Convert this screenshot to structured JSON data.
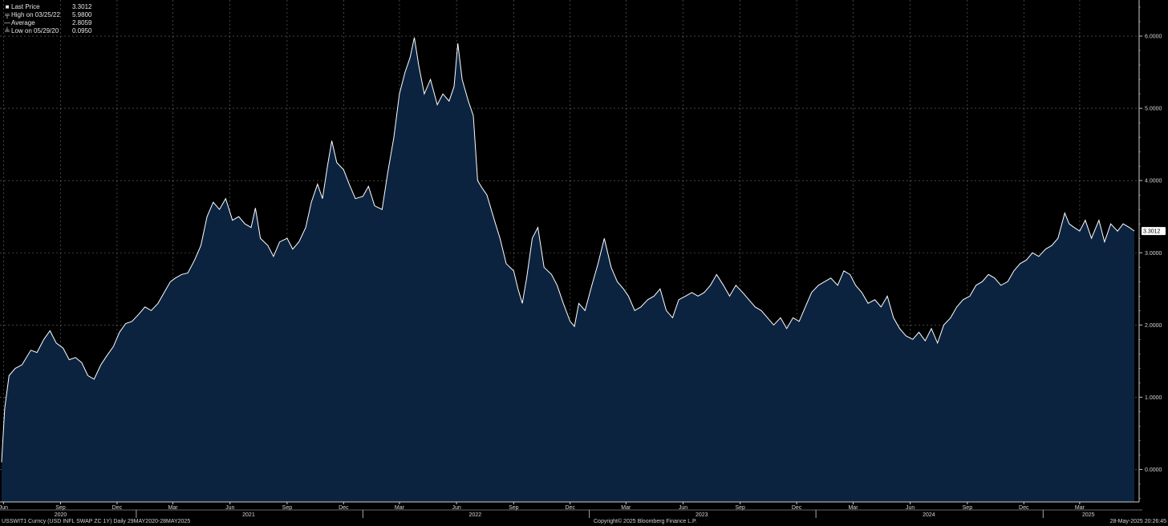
{
  "legend": {
    "items": [
      {
        "key": "swatch",
        "label": "Last Price",
        "value": "3.3012"
      },
      {
        "key": "high",
        "label": "High on 03/25/22",
        "value": "5.9800"
      },
      {
        "key": "avg",
        "label": "Average",
        "value": "2.8059"
      },
      {
        "key": "low",
        "label": "Low on 05/29/20",
        "value": "0.0950"
      }
    ]
  },
  "footer": {
    "left": "USSWIT1 Curncy (USD INFL SWAP ZC 1Y)  Daily 29MAY2020-28MAY2025",
    "center": "Copyright© 2025 Bloomberg Finance L.P.",
    "right": "28-May-2025 20:26:45"
  },
  "colors": {
    "background": "#000000",
    "area_fill": "#0c2340",
    "line": "#ffffff",
    "grid": "#6e6e6e"
  },
  "chart_data": {
    "type": "area",
    "ylim": [
      -0.45,
      6.5
    ],
    "y_ticks": [
      0,
      1,
      2,
      3,
      4,
      5,
      6
    ],
    "y_tick_labels": [
      "0.0000",
      "1.0000",
      "2.0000",
      "3.0000",
      "4.0000",
      "5.0000",
      "6.0000"
    ],
    "x_range": [
      "2020-05-29",
      "2025-05-28"
    ],
    "month_ticks": [
      {
        "date": "2020-06-01",
        "label": "Jun"
      },
      {
        "date": "2020-09-01",
        "label": "Sep"
      },
      {
        "date": "2020-12-01",
        "label": "Dec"
      },
      {
        "date": "2021-03-01",
        "label": "Mar"
      },
      {
        "date": "2021-06-01",
        "label": "Jun"
      },
      {
        "date": "2021-09-01",
        "label": "Sep"
      },
      {
        "date": "2021-12-01",
        "label": "Dec"
      },
      {
        "date": "2022-03-01",
        "label": "Mar"
      },
      {
        "date": "2022-06-01",
        "label": "Jun"
      },
      {
        "date": "2022-09-01",
        "label": "Sep"
      },
      {
        "date": "2022-12-01",
        "label": "Dec"
      },
      {
        "date": "2023-03-01",
        "label": "Mar"
      },
      {
        "date": "2023-06-01",
        "label": "Jun"
      },
      {
        "date": "2023-09-01",
        "label": "Sep"
      },
      {
        "date": "2023-12-01",
        "label": "Dec"
      },
      {
        "date": "2024-03-01",
        "label": "Mar"
      },
      {
        "date": "2024-06-01",
        "label": "Jun"
      },
      {
        "date": "2024-09-01",
        "label": "Sep"
      },
      {
        "date": "2024-12-01",
        "label": "Dec"
      },
      {
        "date": "2025-03-01",
        "label": "Mar"
      }
    ],
    "year_labels": [
      {
        "date": "2020-09-01",
        "label": "2020"
      },
      {
        "date": "2021-07-01",
        "label": "2021"
      },
      {
        "date": "2022-07-01",
        "label": "2022"
      },
      {
        "date": "2023-07-01",
        "label": "2023"
      },
      {
        "date": "2024-07-01",
        "label": "2024"
      },
      {
        "date": "2025-03-15",
        "label": "2025"
      }
    ],
    "year_boundaries": [
      "2021-01-01",
      "2022-01-01",
      "2023-01-01",
      "2024-01-01",
      "2025-01-01"
    ],
    "last_price_label": "3.3012",
    "last_price_value": 3.3012,
    "grid": true,
    "series": [
      {
        "points": [
          [
            "2020-05-29",
            0.1
          ],
          [
            "2020-06-03",
            0.85
          ],
          [
            "2020-06-10",
            1.3
          ],
          [
            "2020-06-20",
            1.4
          ],
          [
            "2020-07-01",
            1.45
          ],
          [
            "2020-07-15",
            1.65
          ],
          [
            "2020-07-25",
            1.62
          ],
          [
            "2020-08-05",
            1.8
          ],
          [
            "2020-08-15",
            1.92
          ],
          [
            "2020-08-25",
            1.75
          ],
          [
            "2020-09-05",
            1.68
          ],
          [
            "2020-09-15",
            1.52
          ],
          [
            "2020-09-25",
            1.55
          ],
          [
            "2020-10-05",
            1.48
          ],
          [
            "2020-10-15",
            1.3
          ],
          [
            "2020-10-25",
            1.25
          ],
          [
            "2020-11-05",
            1.45
          ],
          [
            "2020-11-15",
            1.58
          ],
          [
            "2020-11-25",
            1.7
          ],
          [
            "2020-12-05",
            1.9
          ],
          [
            "2020-12-15",
            2.02
          ],
          [
            "2020-12-25",
            2.05
          ],
          [
            "2021-01-05",
            2.15
          ],
          [
            "2021-01-15",
            2.25
          ],
          [
            "2021-01-25",
            2.2
          ],
          [
            "2021-02-05",
            2.3
          ],
          [
            "2021-02-15",
            2.45
          ],
          [
            "2021-02-25",
            2.6
          ],
          [
            "2021-03-05",
            2.65
          ],
          [
            "2021-03-15",
            2.7
          ],
          [
            "2021-03-25",
            2.72
          ],
          [
            "2021-04-05",
            2.9
          ],
          [
            "2021-04-15",
            3.1
          ],
          [
            "2021-04-25",
            3.5
          ],
          [
            "2021-05-05",
            3.7
          ],
          [
            "2021-05-15",
            3.6
          ],
          [
            "2021-05-25",
            3.75
          ],
          [
            "2021-06-05",
            3.45
          ],
          [
            "2021-06-15",
            3.5
          ],
          [
            "2021-06-25",
            3.4
          ],
          [
            "2021-07-05",
            3.35
          ],
          [
            "2021-07-12",
            3.62
          ],
          [
            "2021-07-20",
            3.2
          ],
          [
            "2021-08-01",
            3.1
          ],
          [
            "2021-08-10",
            2.95
          ],
          [
            "2021-08-20",
            3.15
          ],
          [
            "2021-09-01",
            3.2
          ],
          [
            "2021-09-10",
            3.05
          ],
          [
            "2021-09-20",
            3.15
          ],
          [
            "2021-10-01",
            3.35
          ],
          [
            "2021-10-10",
            3.7
          ],
          [
            "2021-10-20",
            3.95
          ],
          [
            "2021-10-28",
            3.75
          ],
          [
            "2021-11-05",
            4.2
          ],
          [
            "2021-11-12",
            4.55
          ],
          [
            "2021-11-20",
            4.25
          ],
          [
            "2021-12-01",
            4.15
          ],
          [
            "2021-12-10",
            3.95
          ],
          [
            "2021-12-20",
            3.75
          ],
          [
            "2022-01-01",
            3.78
          ],
          [
            "2022-01-10",
            3.92
          ],
          [
            "2022-01-20",
            3.65
          ],
          [
            "2022-02-01",
            3.6
          ],
          [
            "2022-02-10",
            4.1
          ],
          [
            "2022-02-20",
            4.6
          ],
          [
            "2022-03-01",
            5.2
          ],
          [
            "2022-03-10",
            5.5
          ],
          [
            "2022-03-18",
            5.7
          ],
          [
            "2022-03-25",
            5.98
          ],
          [
            "2022-04-01",
            5.6
          ],
          [
            "2022-04-10",
            5.2
          ],
          [
            "2022-04-20",
            5.4
          ],
          [
            "2022-05-01",
            5.05
          ],
          [
            "2022-05-10",
            5.2
          ],
          [
            "2022-05-20",
            5.1
          ],
          [
            "2022-05-28",
            5.3
          ],
          [
            "2022-06-03",
            5.9
          ],
          [
            "2022-06-10",
            5.4
          ],
          [
            "2022-06-20",
            5.1
          ],
          [
            "2022-06-28",
            4.9
          ],
          [
            "2022-07-05",
            4.0
          ],
          [
            "2022-07-12",
            3.9
          ],
          [
            "2022-07-20",
            3.8
          ],
          [
            "2022-08-01",
            3.45
          ],
          [
            "2022-08-10",
            3.2
          ],
          [
            "2022-08-20",
            2.85
          ],
          [
            "2022-09-01",
            2.75
          ],
          [
            "2022-09-08",
            2.5
          ],
          [
            "2022-09-15",
            2.3
          ],
          [
            "2022-09-22",
            2.65
          ],
          [
            "2022-10-01",
            3.2
          ],
          [
            "2022-10-10",
            3.35
          ],
          [
            "2022-10-20",
            2.8
          ],
          [
            "2022-11-01",
            2.7
          ],
          [
            "2022-11-10",
            2.55
          ],
          [
            "2022-11-20",
            2.3
          ],
          [
            "2022-12-01",
            2.05
          ],
          [
            "2022-12-08",
            1.98
          ],
          [
            "2022-12-15",
            2.3
          ],
          [
            "2022-12-25",
            2.2
          ],
          [
            "2023-01-05",
            2.55
          ],
          [
            "2023-01-15",
            2.85
          ],
          [
            "2023-01-25",
            3.2
          ],
          [
            "2023-02-05",
            2.8
          ],
          [
            "2023-02-15",
            2.6
          ],
          [
            "2023-02-25",
            2.5
          ],
          [
            "2023-03-05",
            2.4
          ],
          [
            "2023-03-15",
            2.2
          ],
          [
            "2023-03-25",
            2.25
          ],
          [
            "2023-04-05",
            2.35
          ],
          [
            "2023-04-15",
            2.4
          ],
          [
            "2023-04-25",
            2.5
          ],
          [
            "2023-05-05",
            2.2
          ],
          [
            "2023-05-15",
            2.1
          ],
          [
            "2023-05-25",
            2.35
          ],
          [
            "2023-06-05",
            2.4
          ],
          [
            "2023-06-15",
            2.45
          ],
          [
            "2023-06-25",
            2.4
          ],
          [
            "2023-07-05",
            2.45
          ],
          [
            "2023-07-15",
            2.55
          ],
          [
            "2023-07-25",
            2.7
          ],
          [
            "2023-08-05",
            2.55
          ],
          [
            "2023-08-15",
            2.4
          ],
          [
            "2023-08-25",
            2.55
          ],
          [
            "2023-09-05",
            2.45
          ],
          [
            "2023-09-15",
            2.35
          ],
          [
            "2023-09-25",
            2.25
          ],
          [
            "2023-10-05",
            2.2
          ],
          [
            "2023-10-15",
            2.1
          ],
          [
            "2023-10-25",
            2.0
          ],
          [
            "2023-11-05",
            2.1
          ],
          [
            "2023-11-15",
            1.95
          ],
          [
            "2023-11-25",
            2.1
          ],
          [
            "2023-12-05",
            2.05
          ],
          [
            "2023-12-15",
            2.25
          ],
          [
            "2023-12-25",
            2.45
          ],
          [
            "2024-01-05",
            2.55
          ],
          [
            "2024-01-15",
            2.6
          ],
          [
            "2024-01-25",
            2.65
          ],
          [
            "2024-02-05",
            2.55
          ],
          [
            "2024-02-15",
            2.75
          ],
          [
            "2024-02-25",
            2.7
          ],
          [
            "2024-03-05",
            2.55
          ],
          [
            "2024-03-15",
            2.45
          ],
          [
            "2024-03-25",
            2.3
          ],
          [
            "2024-04-05",
            2.35
          ],
          [
            "2024-04-15",
            2.25
          ],
          [
            "2024-04-25",
            2.4
          ],
          [
            "2024-05-05",
            2.1
          ],
          [
            "2024-05-15",
            1.95
          ],
          [
            "2024-05-25",
            1.85
          ],
          [
            "2024-06-05",
            1.8
          ],
          [
            "2024-06-15",
            1.9
          ],
          [
            "2024-06-25",
            1.78
          ],
          [
            "2024-07-05",
            1.95
          ],
          [
            "2024-07-15",
            1.75
          ],
          [
            "2024-07-25",
            2.0
          ],
          [
            "2024-08-05",
            2.1
          ],
          [
            "2024-08-15",
            2.25
          ],
          [
            "2024-08-25",
            2.35
          ],
          [
            "2024-09-05",
            2.4
          ],
          [
            "2024-09-15",
            2.55
          ],
          [
            "2024-09-25",
            2.6
          ],
          [
            "2024-10-05",
            2.7
          ],
          [
            "2024-10-15",
            2.65
          ],
          [
            "2024-10-25",
            2.55
          ],
          [
            "2024-11-05",
            2.6
          ],
          [
            "2024-11-15",
            2.75
          ],
          [
            "2024-11-25",
            2.85
          ],
          [
            "2024-12-05",
            2.9
          ],
          [
            "2024-12-15",
            3.0
          ],
          [
            "2024-12-25",
            2.95
          ],
          [
            "2025-01-05",
            3.05
          ],
          [
            "2025-01-15",
            3.1
          ],
          [
            "2025-01-25",
            3.2
          ],
          [
            "2025-02-05",
            3.55
          ],
          [
            "2025-02-12",
            3.4
          ],
          [
            "2025-02-20",
            3.35
          ],
          [
            "2025-03-01",
            3.3
          ],
          [
            "2025-03-10",
            3.45
          ],
          [
            "2025-03-20",
            3.2
          ],
          [
            "2025-04-01",
            3.45
          ],
          [
            "2025-04-10",
            3.15
          ],
          [
            "2025-04-20",
            3.4
          ],
          [
            "2025-05-01",
            3.3
          ],
          [
            "2025-05-10",
            3.4
          ],
          [
            "2025-05-20",
            3.35
          ],
          [
            "2025-05-28",
            3.3012
          ]
        ]
      }
    ]
  }
}
